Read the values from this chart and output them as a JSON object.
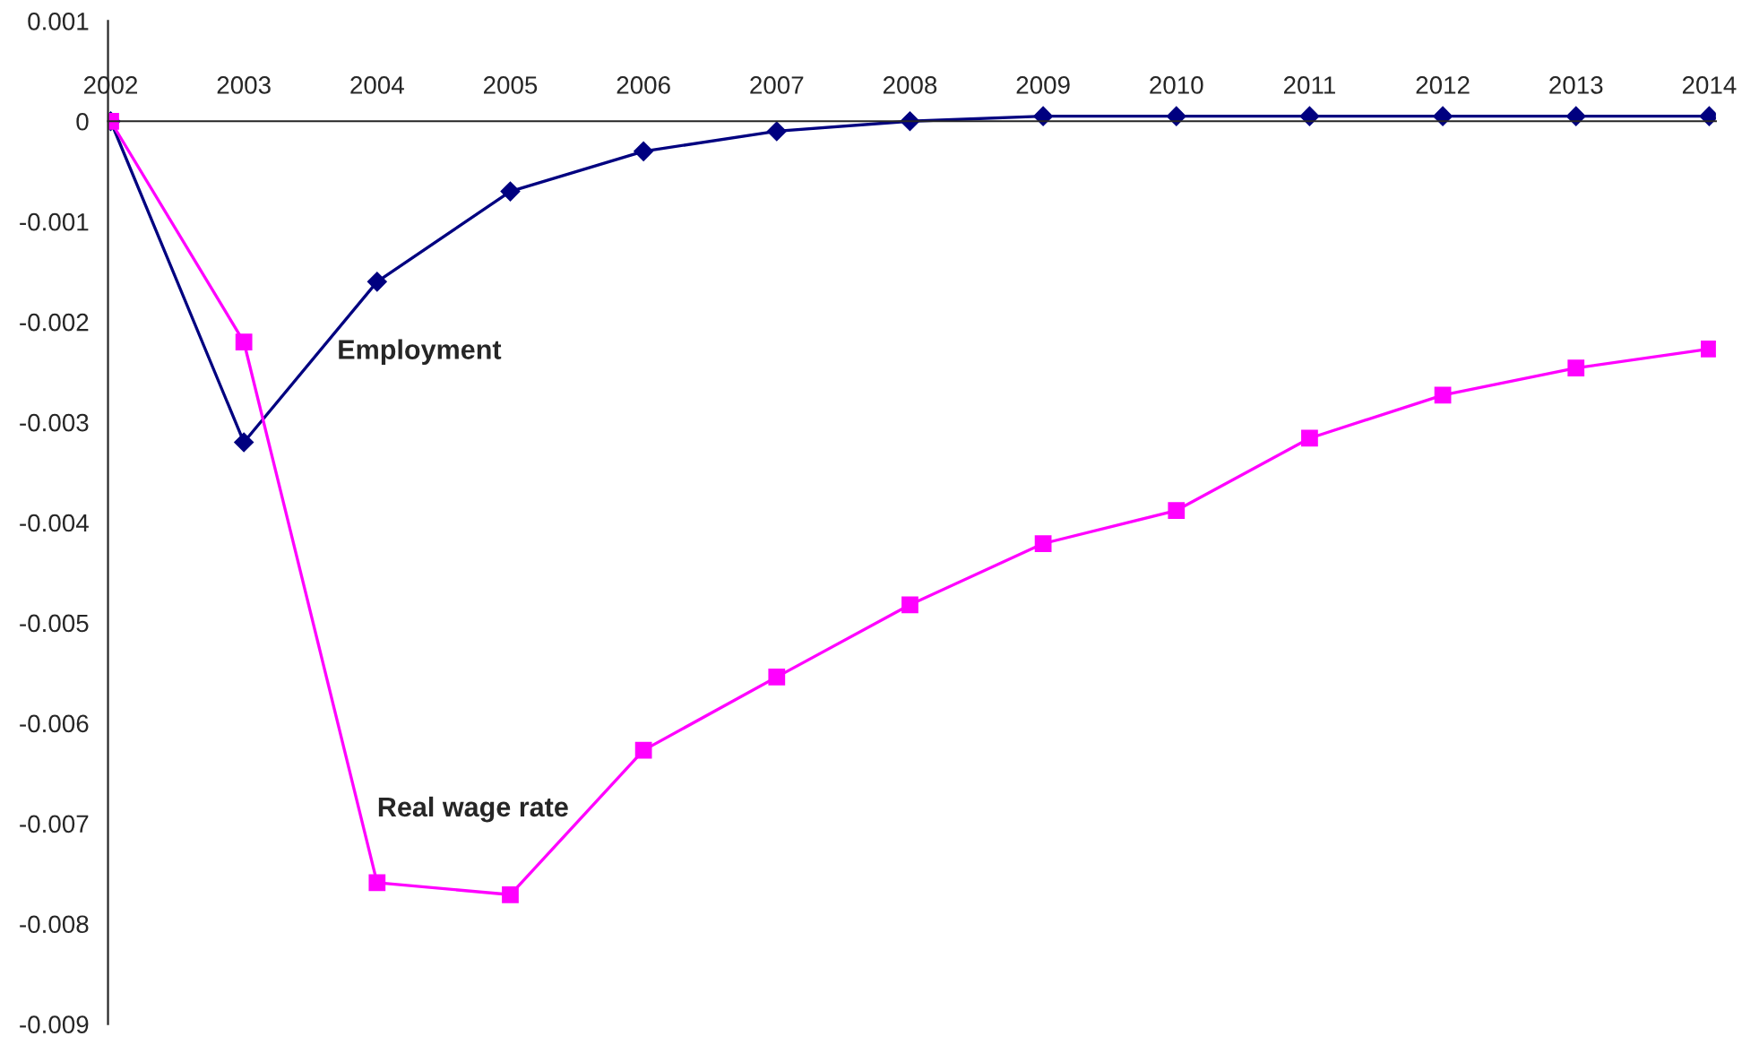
{
  "chart_data": {
    "type": "line",
    "categories": [
      "2002",
      "2003",
      "2004",
      "2005",
      "2006",
      "2007",
      "2008",
      "2009",
      "2010",
      "2011",
      "2012",
      "2013",
      "2014"
    ],
    "series": [
      {
        "name": "Employment",
        "color": "#000080",
        "marker": "diamond",
        "values": [
          0,
          -0.0032,
          -0.0016,
          -0.0007,
          -0.0003,
          -0.0001,
          0,
          5e-05,
          5e-05,
          5e-05,
          5e-05,
          5e-05,
          5e-05
        ]
      },
      {
        "name": "Real wage rate",
        "color": "#ff00ff",
        "marker": "square",
        "values": [
          0,
          -0.0022,
          -0.00759,
          -0.00771,
          -0.00627,
          -0.00554,
          -0.00482,
          -0.00421,
          -0.00388,
          -0.00316,
          -0.00273,
          -0.00246,
          -0.00227
        ]
      }
    ],
    "ylim": [
      -0.009,
      0.001
    ],
    "yticks": [
      -0.009,
      -0.008,
      -0.007,
      -0.006,
      -0.005,
      -0.004,
      -0.003,
      -0.002,
      -0.001,
      0,
      0.001
    ],
    "grid": false,
    "legend": false,
    "line_style": "solid"
  }
}
